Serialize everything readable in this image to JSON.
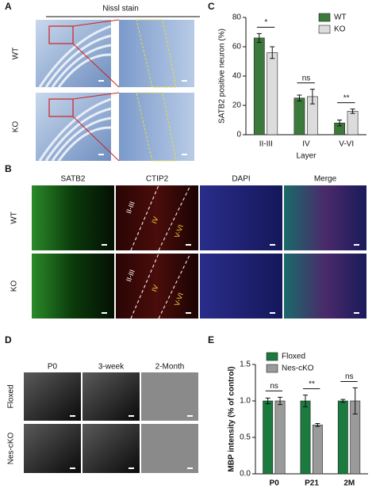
{
  "panels": {
    "a": {
      "label": "A",
      "title": "Nissl stain",
      "rows": [
        "WT",
        "KO"
      ]
    },
    "b": {
      "label": "B",
      "columns": [
        "SATB2",
        "CTIP2",
        "DAPI",
        "Merge"
      ],
      "rows": [
        "WT",
        "KO"
      ],
      "layers": [
        "II-III",
        "IV",
        "V-VI"
      ]
    },
    "c": {
      "label": "C"
    },
    "d": {
      "label": "D",
      "columns": [
        "P0",
        "3-week",
        "2-Month"
      ],
      "rows": [
        "Floxed",
        "Nes-cKO"
      ]
    },
    "e": {
      "label": "E"
    }
  },
  "chart_data": [
    {
      "type": "bar",
      "ylabel": "SATB2 positive neuron (%)",
      "xlabel": "Layer",
      "categories": [
        "II-III",
        "IV",
        "V-VI"
      ],
      "series": [
        {
          "name": "WT",
          "color": "#3c7a3c",
          "values": [
            66,
            25,
            8
          ],
          "errors": [
            3,
            2,
            2
          ]
        },
        {
          "name": "KO",
          "color": "#dcdcdc",
          "values": [
            56,
            26,
            16
          ],
          "errors": [
            4,
            5,
            1.5
          ]
        }
      ],
      "annotations": [
        "*",
        "ns",
        "**"
      ],
      "ylim": [
        0,
        80
      ],
      "yticks": [
        0,
        20,
        40,
        60,
        80
      ],
      "legend": "top-right"
    },
    {
      "type": "bar",
      "ylabel": "MBP intensity (% of control)",
      "categories": [
        "P0",
        "P21",
        "2M"
      ],
      "series": [
        {
          "name": "Floxed",
          "color": "#1b7a3e",
          "values": [
            1.0,
            1.0,
            1.0
          ],
          "errors": [
            0.04,
            0.08,
            0.02
          ]
        },
        {
          "name": "Nes-cKO",
          "color": "#9a9a9a",
          "values": [
            1.0,
            0.67,
            1.0
          ],
          "errors": [
            0.05,
            0.02,
            0.18
          ]
        }
      ],
      "annotations": [
        "ns",
        "**",
        "ns"
      ],
      "ylim": [
        0,
        1.5
      ],
      "yticks": [
        {
          "value": 0,
          "label": "0.0"
        },
        {
          "value": 0.5,
          "label": "0.5"
        },
        {
          "value": 1,
          "label": "1.0"
        },
        {
          "value": 1.5,
          "label": "1.5"
        }
      ],
      "legend": "top-left"
    }
  ]
}
